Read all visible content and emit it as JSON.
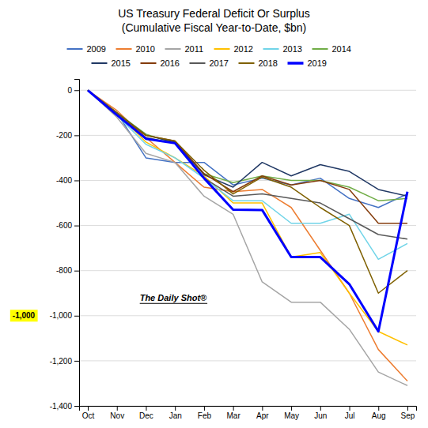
{
  "chart_data": {
    "type": "line",
    "title": "US Treasury Federal Deficit Or Surplus\n(Cumulative Fiscal Year-to-Date, $bn)",
    "categories": [
      "Oct",
      "Nov",
      "Dec",
      "Jan",
      "Feb",
      "Mar",
      "Apr",
      "May",
      "Jun",
      "Jul",
      "Aug",
      "Sep"
    ],
    "series": [
      {
        "name": "2009",
        "color": "#4472C4",
        "values": [
          0,
          -100,
          -300,
          -320,
          -320,
          -420,
          -390,
          -420,
          -390,
          -480,
          -520,
          -460
        ]
      },
      {
        "name": "2010",
        "color": "#ED7D31",
        "values": [
          0,
          -90,
          -210,
          -320,
          -430,
          -450,
          -440,
          -520,
          -710,
          -900,
          -1150,
          -1290
        ]
      },
      {
        "name": "2011",
        "color": "#A5A5A5",
        "values": [
          0,
          -120,
          -280,
          -320,
          -470,
          -550,
          -850,
          -940,
          -940,
          -1060,
          -1250,
          -1310
        ]
      },
      {
        "name": "2012",
        "color": "#FFC000",
        "values": [
          0,
          -100,
          -230,
          -300,
          -380,
          -500,
          -500,
          -740,
          -720,
          -900,
          -1070,
          -1130
        ]
      },
      {
        "name": "2013",
        "color": "#70D4E8",
        "values": [
          0,
          -110,
          -240,
          -300,
          -390,
          -490,
          -490,
          -590,
          -590,
          -550,
          -750,
          -680
        ]
      },
      {
        "name": "2014",
        "color": "#70AD47",
        "values": [
          0,
          -100,
          -195,
          -235,
          -370,
          -410,
          -380,
          -400,
          -400,
          -430,
          -490,
          -480
        ]
      },
      {
        "name": "2015",
        "color": "#203864",
        "values": [
          0,
          -100,
          -200,
          -230,
          -375,
          -430,
          -320,
          -380,
          -330,
          -360,
          -440,
          -470
        ]
      },
      {
        "name": "2016",
        "color": "#843C0C",
        "values": [
          0,
          -110,
          -200,
          -225,
          -370,
          -450,
          -380,
          -420,
          -400,
          -440,
          -590,
          -590
        ]
      },
      {
        "name": "2017",
        "color": "#595959",
        "values": [
          0,
          -110,
          -210,
          -235,
          -390,
          -470,
          -460,
          -480,
          -500,
          -570,
          -640,
          -660
        ]
      },
      {
        "name": "2018",
        "color": "#7F6000",
        "values": [
          0,
          -100,
          -200,
          -225,
          -355,
          -460,
          -385,
          -430,
          -520,
          -600,
          -900,
          -800
        ]
      },
      {
        "name": "2019",
        "color": "#0000FF",
        "values": [
          0,
          -110,
          -215,
          -235,
          -390,
          -530,
          -531,
          -740,
          -740,
          -860,
          -1070,
          -450
        ]
      }
    ],
    "ylim": [
      -1400,
      50
    ],
    "yticks": [
      0,
      -200,
      -400,
      -600,
      -800,
      {
        "value": -1000,
        "label": "-1,000"
      },
      {
        "value": -1200,
        "label": "-1,200"
      },
      {
        "value": -1400,
        "label": "-1,400"
      }
    ],
    "grid": true,
    "legend": "top",
    "annotations": [
      {
        "text": "-1,000",
        "y": -1000
      },
      {
        "text": "The Daily Shot®"
      }
    ]
  }
}
